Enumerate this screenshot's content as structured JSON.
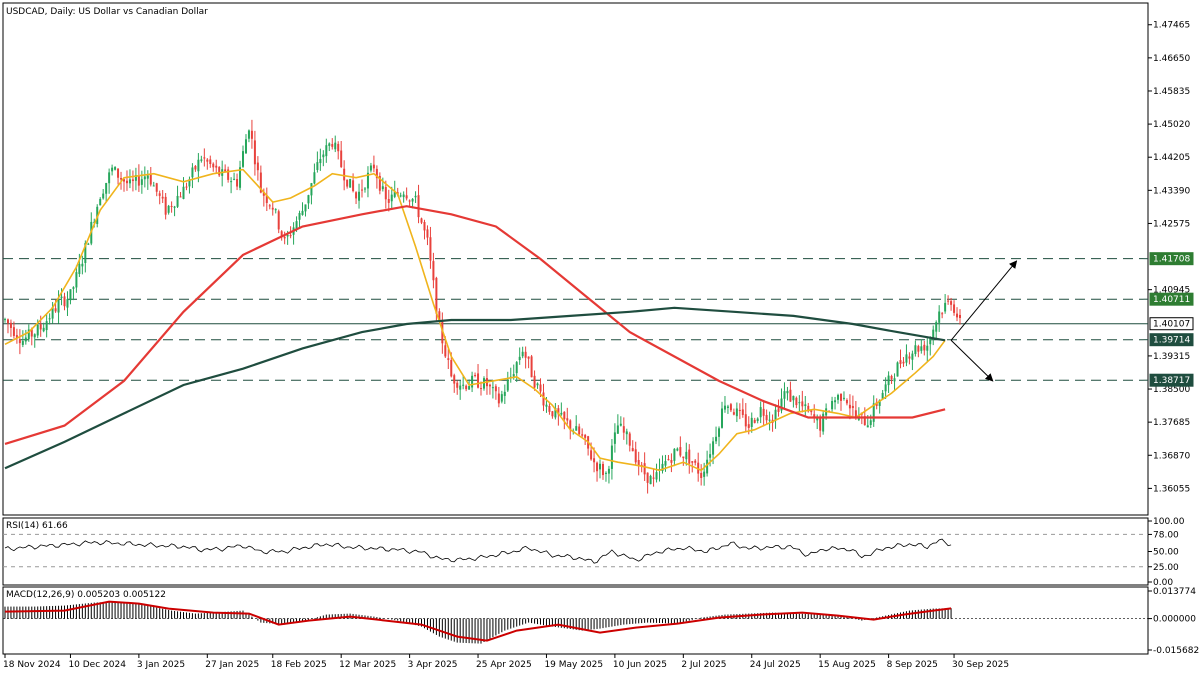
{
  "window": {
    "title": "USDCAD, Daily:  US Dollar vs Canadian Dollar"
  },
  "colors": {
    "bull": "#26a65b",
    "bear": "#e8413c",
    "sma20": "#f0b41c",
    "sma100": "#e53935",
    "sma200": "#1f4d3f",
    "hline": "#1f4d3f",
    "tag_green": "#2e7d32",
    "tag_dark": "#1f4d3f",
    "indicator_line": "#000000",
    "macd_signal": "#cc0000"
  },
  "chart_data": [
    {
      "type": "candlestick",
      "symbol": "USDCAD",
      "timeframe": "Daily",
      "title": "USDCAD, Daily:  US Dollar vs Canadian Dollar",
      "ylim": [
        1.354,
        1.48
      ],
      "y_ticks": [
        "1.47465",
        "1.46650",
        "1.45835",
        "1.45020",
        "1.44205",
        "1.43390",
        "1.42575",
        "1.40945",
        "1.39315",
        "1.38500",
        "1.37685",
        "1.36870",
        "1.36055"
      ],
      "x_ticks": [
        "18 Nov 2024",
        "10 Dec 2024",
        "3 Jan 2025",
        "27 Jan 2025",
        "18 Feb 2025",
        "12 Mar 2025",
        "3 Apr 2025",
        "25 Apr 2025",
        "19 May 2025",
        "10 Jun 2025",
        "2 Jul 2025",
        "24 Jul 2025",
        "15 Aug 2025",
        "8 Sep 2025",
        "30 Sep 2025"
      ],
      "price_path": [
        [
          0,
          1.402
        ],
        [
          6,
          1.397
        ],
        [
          12,
          1.4
        ],
        [
          18,
          1.406
        ],
        [
          22,
          1.408
        ],
        [
          26,
          1.417
        ],
        [
          32,
          1.433
        ],
        [
          36,
          1.439
        ],
        [
          42,
          1.435
        ],
        [
          48,
          1.438
        ],
        [
          54,
          1.429
        ],
        [
          60,
          1.434
        ],
        [
          66,
          1.442
        ],
        [
          72,
          1.438
        ],
        [
          78,
          1.436
        ],
        [
          82,
          1.45
        ],
        [
          86,
          1.434
        ],
        [
          90,
          1.43
        ],
        [
          94,
          1.421
        ],
        [
          100,
          1.429
        ],
        [
          106,
          1.442
        ],
        [
          110,
          1.446
        ],
        [
          114,
          1.438
        ],
        [
          118,
          1.432
        ],
        [
          124,
          1.44
        ],
        [
          128,
          1.431
        ],
        [
          134,
          1.434
        ],
        [
          138,
          1.431
        ],
        [
          142,
          1.421
        ],
        [
          146,
          1.4
        ],
        [
          150,
          1.388
        ],
        [
          154,
          1.386
        ],
        [
          158,
          1.387
        ],
        [
          162,
          1.386
        ],
        [
          166,
          1.382
        ],
        [
          170,
          1.388
        ],
        [
          174,
          1.395
        ],
        [
          178,
          1.387
        ],
        [
          182,
          1.381
        ],
        [
          186,
          1.378
        ],
        [
          190,
          1.376
        ],
        [
          194,
          1.373
        ],
        [
          198,
          1.367
        ],
        [
          202,
          1.364
        ],
        [
          206,
          1.376
        ],
        [
          210,
          1.372
        ],
        [
          214,
          1.365
        ],
        [
          218,
          1.362
        ],
        [
          222,
          1.367
        ],
        [
          226,
          1.37
        ],
        [
          230,
          1.368
        ],
        [
          234,
          1.364
        ],
        [
          238,
          1.372
        ],
        [
          242,
          1.382
        ],
        [
          246,
          1.379
        ],
        [
          250,
          1.376
        ],
        [
          254,
          1.38
        ],
        [
          258,
          1.378
        ],
        [
          262,
          1.384
        ],
        [
          266,
          1.382
        ],
        [
          270,
          1.379
        ],
        [
          274,
          1.376
        ],
        [
          278,
          1.382
        ],
        [
          282,
          1.384
        ],
        [
          286,
          1.378
        ],
        [
          290,
          1.377
        ],
        [
          294,
          1.383
        ],
        [
          298,
          1.388
        ],
        [
          302,
          1.393
        ],
        [
          306,
          1.395
        ],
        [
          310,
          1.396
        ],
        [
          314,
          1.404
        ],
        [
          318,
          1.407
        ],
        [
          321,
          1.401
        ]
      ],
      "moving_averages": [
        {
          "period": 20,
          "color": "#f0b41c",
          "values": [
            [
              0,
              1.396
            ],
            [
              8,
              1.399
            ],
            [
              16,
              1.405
            ],
            [
              24,
              1.415
            ],
            [
              32,
              1.429
            ],
            [
              40,
              1.437
            ],
            [
              50,
              1.438
            ],
            [
              60,
              1.436
            ],
            [
              70,
              1.438
            ],
            [
              80,
              1.439
            ],
            [
              90,
              1.431
            ],
            [
              96,
              1.432
            ],
            [
              104,
              1.435
            ],
            [
              110,
              1.438
            ],
            [
              118,
              1.437
            ],
            [
              124,
              1.438
            ],
            [
              132,
              1.433
            ],
            [
              138,
              1.42
            ],
            [
              144,
              1.406
            ],
            [
              150,
              1.393
            ],
            [
              156,
              1.386
            ],
            [
              164,
              1.387
            ],
            [
              172,
              1.388
            ],
            [
              178,
              1.385
            ],
            [
              184,
              1.381
            ],
            [
              190,
              1.375
            ],
            [
              196,
              1.372
            ],
            [
              200,
              1.368
            ],
            [
              206,
              1.367
            ],
            [
              214,
              1.366
            ],
            [
              220,
              1.365
            ],
            [
              228,
              1.367
            ],
            [
              234,
              1.365
            ],
            [
              240,
              1.369
            ],
            [
              246,
              1.374
            ],
            [
              252,
              1.375
            ],
            [
              258,
              1.377
            ],
            [
              264,
              1.379
            ],
            [
              272,
              1.38
            ],
            [
              280,
              1.379
            ],
            [
              286,
              1.378
            ],
            [
              290,
              1.38
            ],
            [
              298,
              1.384
            ],
            [
              306,
              1.389
            ],
            [
              312,
              1.393
            ],
            [
              316,
              1.397
            ]
          ]
        },
        {
          "period": 100,
          "color": "#e53935",
          "values": [
            [
              0,
              1.3715
            ],
            [
              20,
              1.376
            ],
            [
              40,
              1.387
            ],
            [
              60,
              1.404
            ],
            [
              80,
              1.418
            ],
            [
              100,
              1.425
            ],
            [
              120,
              1.428
            ],
            [
              135,
              1.43
            ],
            [
              150,
              1.428
            ],
            [
              165,
              1.425
            ],
            [
              180,
              1.417
            ],
            [
              195,
              1.408
            ],
            [
              210,
              1.399
            ],
            [
              225,
              1.393
            ],
            [
              240,
              1.387
            ],
            [
              255,
              1.382
            ],
            [
              270,
              1.378
            ],
            [
              290,
              1.378
            ],
            [
              305,
              1.378
            ],
            [
              316,
              1.38
            ]
          ]
        },
        {
          "period": 200,
          "color": "#1f4d3f",
          "values": [
            [
              0,
              1.3655
            ],
            [
              20,
              1.372
            ],
            [
              40,
              1.379
            ],
            [
              60,
              1.386
            ],
            [
              80,
              1.39
            ],
            [
              100,
              1.395
            ],
            [
              120,
              1.399
            ],
            [
              135,
              1.401
            ],
            [
              150,
              1.402
            ],
            [
              170,
              1.402
            ],
            [
              190,
              1.403
            ],
            [
              210,
              1.404
            ],
            [
              225,
              1.405
            ],
            [
              245,
              1.404
            ],
            [
              265,
              1.403
            ],
            [
              285,
              1.401
            ],
            [
              300,
              1.399
            ],
            [
              316,
              1.397
            ]
          ]
        }
      ],
      "horizontal_levels": [
        {
          "price": 1.41708,
          "label": "1.41708",
          "style": "dashed",
          "tag": "green"
        },
        {
          "price": 1.40711,
          "label": "1.40711",
          "style": "dashed",
          "tag": "green"
        },
        {
          "price": 1.40107,
          "label": "1.40107",
          "style": "solid",
          "tag": "white"
        },
        {
          "price": 1.39714,
          "label": "1.39714",
          "style": "dashed",
          "tag": "dark"
        },
        {
          "price": 1.38717,
          "label": "1.38717",
          "style": "dashed",
          "tag": "dark"
        }
      ],
      "projection_arrows": [
        {
          "from_bar": 318,
          "from_price": 1.397,
          "to_bar": 340,
          "to_price": 1.4165
        },
        {
          "from_bar": 318,
          "from_price": 1.397,
          "to_bar": 332,
          "to_price": 1.387
        }
      ]
    },
    {
      "type": "line",
      "name": "RSI(14)",
      "label": "RSI(14) 61.66",
      "value": 61.66,
      "ylim": [
        0,
        100
      ],
      "y_ticks": [
        "100.00",
        "78.00",
        "50.00",
        "25.00",
        "0.00"
      ],
      "levels": [
        78,
        25
      ],
      "values": [
        [
          0,
          54
        ],
        [
          10,
          58
        ],
        [
          20,
          61
        ],
        [
          30,
          65
        ],
        [
          40,
          63
        ],
        [
          50,
          60
        ],
        [
          60,
          58
        ],
        [
          66,
          53
        ],
        [
          72,
          54
        ],
        [
          80,
          60
        ],
        [
          86,
          50
        ],
        [
          94,
          50
        ],
        [
          100,
          56
        ],
        [
          108,
          62
        ],
        [
          116,
          57
        ],
        [
          124,
          55
        ],
        [
          132,
          53
        ],
        [
          140,
          49
        ],
        [
          146,
          38
        ],
        [
          152,
          36
        ],
        [
          160,
          40
        ],
        [
          170,
          49
        ],
        [
          176,
          56
        ],
        [
          184,
          44
        ],
        [
          192,
          40
        ],
        [
          198,
          33
        ],
        [
          204,
          50
        ],
        [
          212,
          36
        ],
        [
          220,
          50
        ],
        [
          228,
          56
        ],
        [
          236,
          50
        ],
        [
          244,
          63
        ],
        [
          250,
          55
        ],
        [
          258,
          57
        ],
        [
          264,
          58
        ],
        [
          270,
          44
        ],
        [
          276,
          55
        ],
        [
          284,
          54
        ],
        [
          288,
          41
        ],
        [
          296,
          56
        ],
        [
          304,
          62
        ],
        [
          310,
          58
        ],
        [
          314,
          68
        ],
        [
          318,
          62
        ]
      ]
    },
    {
      "type": "macd",
      "name": "MACD(12,26,9)",
      "label": "MACD(12,26,9) 0.005203 0.005122",
      "main": 0.005203,
      "signal": 0.005122,
      "ylim": [
        -0.015682,
        0.013774
      ],
      "y_ticks": [
        "0.013774",
        "0.000000",
        "-0.015682"
      ],
      "histogram": [
        [
          0,
          0.006
        ],
        [
          10,
          0.006
        ],
        [
          20,
          0.0065
        ],
        [
          30,
          0.008
        ],
        [
          38,
          0.0085
        ],
        [
          46,
          0.007
        ],
        [
          56,
          0.004
        ],
        [
          64,
          0.0025
        ],
        [
          70,
          0.003
        ],
        [
          80,
          0.004
        ],
        [
          86,
          -0.002
        ],
        [
          94,
          -0.003
        ],
        [
          100,
          -0.0015
        ],
        [
          108,
          0.002
        ],
        [
          116,
          0.0025
        ],
        [
          124,
          0.001
        ],
        [
          132,
          -0.001
        ],
        [
          140,
          -0.004
        ],
        [
          146,
          -0.009
        ],
        [
          152,
          -0.012
        ],
        [
          160,
          -0.0125
        ],
        [
          168,
          -0.006
        ],
        [
          176,
          -0.002
        ],
        [
          184,
          -0.004
        ],
        [
          194,
          -0.006
        ],
        [
          200,
          -0.005
        ],
        [
          208,
          -0.003
        ],
        [
          216,
          -0.002
        ],
        [
          226,
          -0.0025
        ],
        [
          234,
          0.0005
        ],
        [
          242,
          0.002
        ],
        [
          250,
          0.0025
        ],
        [
          258,
          0.003
        ],
        [
          266,
          0.0025
        ],
        [
          274,
          0.002
        ],
        [
          282,
          0.001
        ],
        [
          288,
          -0.001
        ],
        [
          296,
          0.0015
        ],
        [
          304,
          0.004
        ],
        [
          312,
          0.005
        ],
        [
          318,
          0.0052
        ]
      ],
      "signal_line": [
        [
          0,
          0.0035
        ],
        [
          20,
          0.004
        ],
        [
          35,
          0.0085
        ],
        [
          45,
          0.0075
        ],
        [
          55,
          0.005
        ],
        [
          70,
          0.003
        ],
        [
          82,
          0.0025
        ],
        [
          92,
          -0.003
        ],
        [
          102,
          -0.001
        ],
        [
          116,
          0.001
        ],
        [
          128,
          -0.001
        ],
        [
          140,
          -0.003
        ],
        [
          152,
          -0.009
        ],
        [
          162,
          -0.011
        ],
        [
          172,
          -0.006
        ],
        [
          186,
          -0.003
        ],
        [
          200,
          -0.007
        ],
        [
          212,
          -0.0045
        ],
        [
          226,
          -0.0025
        ],
        [
          240,
          0.0005
        ],
        [
          254,
          0.002
        ],
        [
          268,
          0.003
        ],
        [
          280,
          0.0015
        ],
        [
          292,
          -0.0005
        ],
        [
          302,
          0.002
        ],
        [
          312,
          0.004
        ],
        [
          318,
          0.0051
        ]
      ]
    }
  ]
}
